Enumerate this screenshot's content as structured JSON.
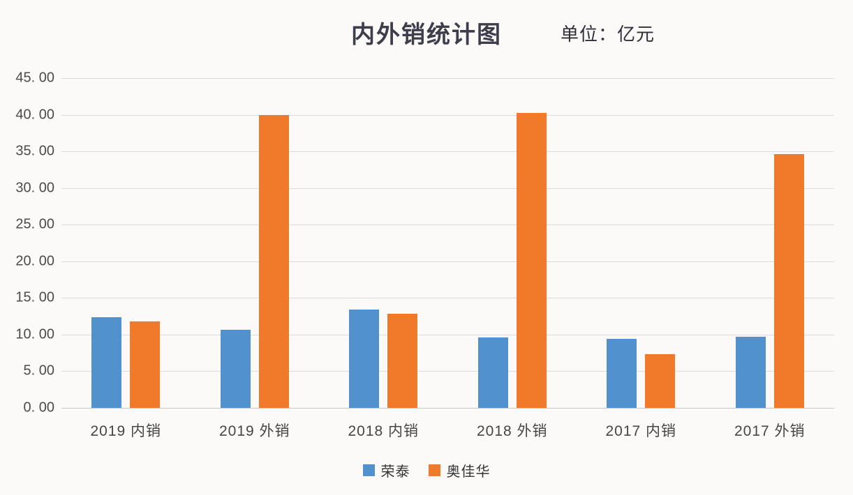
{
  "header": {
    "title": "内外销统计图",
    "unit_label": "单位：亿元"
  },
  "chart_data": {
    "type": "bar",
    "title": "内外销统计图",
    "unit": "亿元",
    "categories": [
      "2019 内销",
      "2019 外销",
      "2018 内销",
      "2018 外销",
      "2017 内销",
      "2017 外销"
    ],
    "series": [
      {
        "name": "荣泰",
        "color": "#5091CE",
        "values": [
          12.4,
          10.7,
          13.4,
          9.6,
          9.4,
          9.7
        ]
      },
      {
        "name": "奥佳华",
        "color": "#F0792A",
        "values": [
          11.8,
          40.0,
          12.8,
          40.2,
          7.3,
          34.6
        ]
      }
    ],
    "xlabel": "",
    "ylabel": "",
    "ylim": [
      0,
      45
    ],
    "ytick_step": 5,
    "ytick_labels": [
      "45. 00",
      "40. 00",
      "35. 00",
      "30. 00",
      "25. 00",
      "20. 00",
      "15. 00",
      "10. 00",
      "5. 00",
      "0. 00"
    ],
    "grid": true,
    "legend_position": "bottom"
  }
}
